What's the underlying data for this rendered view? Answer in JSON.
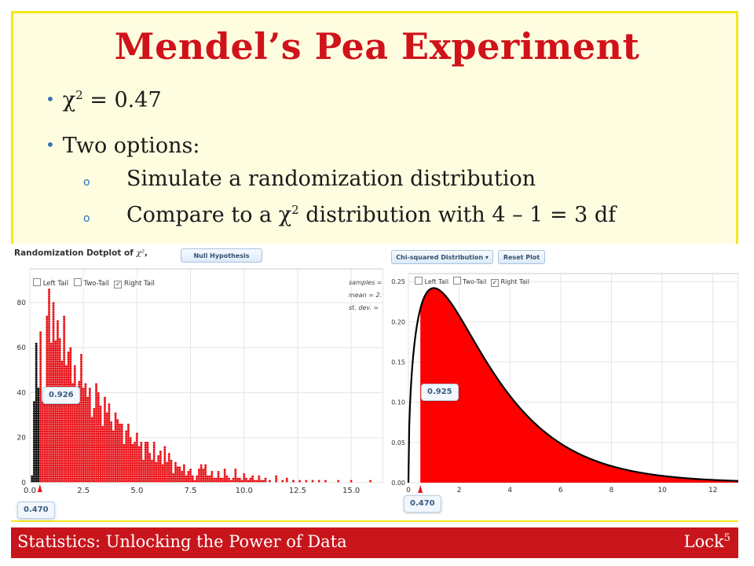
{
  "title": "Mendel’s Pea Experiment",
  "bullets": {
    "chi_prefix": "χ",
    "chi_sup": "2",
    "chi_value": " = 0.47",
    "two_options": "Two options:",
    "sub1_marker": "o",
    "sub1": "Simulate a randomization distribution",
    "sub2_marker": "o",
    "sub2_pre": "Compare to a χ",
    "sub2_sup": "2",
    "sub2_post": " distribution with 4 – 1 = 3 df"
  },
  "left_panel": {
    "heading": "Randomization Dotplot of",
    "heading_symbol": "χ²",
    "heading_comma": ",",
    "null_hypothesis_button": "Null Hypothesis",
    "checkbox_left": "Left Tail",
    "checkbox_two": "Two-Tail",
    "checkbox_right": "Right Tail",
    "stats_samples": "samples =",
    "stats_mean": "mean = 2.",
    "stats_sd": "st. dev. =",
    "callout_value": "0.926",
    "observed_label": "0.470"
  },
  "right_panel": {
    "dist_button": "Chi-squared Distribution ▾",
    "reset_button": "Reset Plot",
    "checkbox_left": "Left Tail",
    "checkbox_two": "Two-Tail",
    "checkbox_right": "Right Tail",
    "callout_value": "0.925",
    "observed_label": "0.470"
  },
  "footer": {
    "left": "Statistics: Unlocking the Power of Data",
    "right": "Lock",
    "right_sup": "5"
  },
  "colors": {
    "title_red": "#d0121b",
    "footer_red": "#c8151c",
    "frame_yellow": "#f2e91c",
    "dot_red": "#e8161c",
    "dot_black": "#111111",
    "curve_fill": "#ff0000"
  },
  "chart_data": [
    {
      "type": "scatter",
      "subtype": "dotplot histogram",
      "x_ticks": [
        "0.0",
        "2.5",
        "5.0",
        "7.5",
        "10.0",
        "12.5",
        "15.0"
      ],
      "y_ticks": [
        "0",
        "20",
        "40",
        "60",
        "80"
      ],
      "xlim": [
        0,
        16.5
      ],
      "ylim": [
        0,
        95
      ],
      "grid": true,
      "observed_statistic": 0.47,
      "tail": "right",
      "right_tail_proportion": 0.926,
      "x": [
        0.1,
        0.2,
        0.3,
        0.4,
        0.5,
        0.6,
        0.7,
        0.8,
        0.9,
        1.0,
        1.1,
        1.2,
        1.3,
        1.4,
        1.5,
        1.6,
        1.7,
        1.8,
        1.9,
        2.0,
        2.1,
        2.2,
        2.3,
        2.4,
        2.5,
        2.6,
        2.7,
        2.8,
        2.9,
        3.0,
        3.1,
        3.2,
        3.3,
        3.4,
        3.5,
        3.6,
        3.7,
        3.8,
        3.9,
        4.0,
        4.1,
        4.2,
        4.3,
        4.4,
        4.5,
        4.6,
        4.7,
        4.8,
        4.9,
        5.0,
        5.1,
        5.2,
        5.3,
        5.4,
        5.5,
        5.6,
        5.7,
        5.8,
        5.9,
        6.0,
        6.1,
        6.2,
        6.3,
        6.4,
        6.5,
        6.6,
        6.7,
        6.8,
        6.9,
        7.0,
        7.1,
        7.2,
        7.3,
        7.4,
        7.5,
        7.6,
        7.7,
        7.8,
        7.9,
        8.0,
        8.1,
        8.2,
        8.3,
        8.4,
        8.5,
        8.6,
        8.7,
        8.8,
        8.9,
        9.0,
        9.1,
        9.2,
        9.3,
        9.4,
        9.5,
        9.6,
        9.7,
        9.8,
        9.9,
        10.0,
        10.1,
        10.2,
        10.3,
        10.4,
        10.5,
        10.6,
        10.7,
        10.8,
        10.9,
        11.0,
        11.2,
        11.5,
        11.8,
        12.0,
        12.3,
        12.6,
        12.9,
        13.2,
        13.5,
        13.8,
        14.4,
        15.0,
        15.9
      ],
      "y": [
        3,
        36,
        62,
        42,
        67,
        36,
        38,
        74,
        88,
        62,
        80,
        63,
        72,
        64,
        54,
        74,
        52,
        58,
        60,
        44,
        52,
        38,
        45,
        57,
        42,
        44,
        38,
        42,
        29,
        33,
        44,
        40,
        34,
        25,
        38,
        31,
        35,
        27,
        23,
        31,
        28,
        26,
        26,
        17,
        23,
        26,
        20,
        17,
        18,
        22,
        16,
        18,
        10,
        18,
        18,
        13,
        10,
        18,
        9,
        12,
        14,
        8,
        16,
        9,
        13,
        10,
        4,
        9,
        7,
        7,
        5,
        8,
        3,
        5,
        6,
        3,
        1,
        3,
        6,
        8,
        6,
        8,
        3,
        3,
        5,
        2,
        2,
        5,
        2,
        2,
        6,
        3,
        2,
        1,
        2,
        6,
        2,
        2,
        1,
        4,
        2,
        1,
        2,
        3,
        1,
        1,
        3,
        1,
        1,
        2,
        1,
        3,
        1,
        2,
        1,
        1,
        1,
        1,
        1,
        1,
        1,
        1,
        1
      ]
    },
    {
      "type": "area",
      "subtype": "chi-squared density, 3 df",
      "x_ticks": [
        "0",
        "2",
        "4",
        "6",
        "8",
        "10",
        "12"
      ],
      "y_ticks": [
        "0.00",
        "0.05",
        "0.10",
        "0.15",
        "0.20",
        "0.25"
      ],
      "xlim": [
        0,
        13
      ],
      "ylim": [
        0,
        0.26
      ],
      "grid": true,
      "df": 3,
      "observed_statistic": 0.47,
      "tail": "right",
      "right_tail_proportion": 0.925
    }
  ]
}
